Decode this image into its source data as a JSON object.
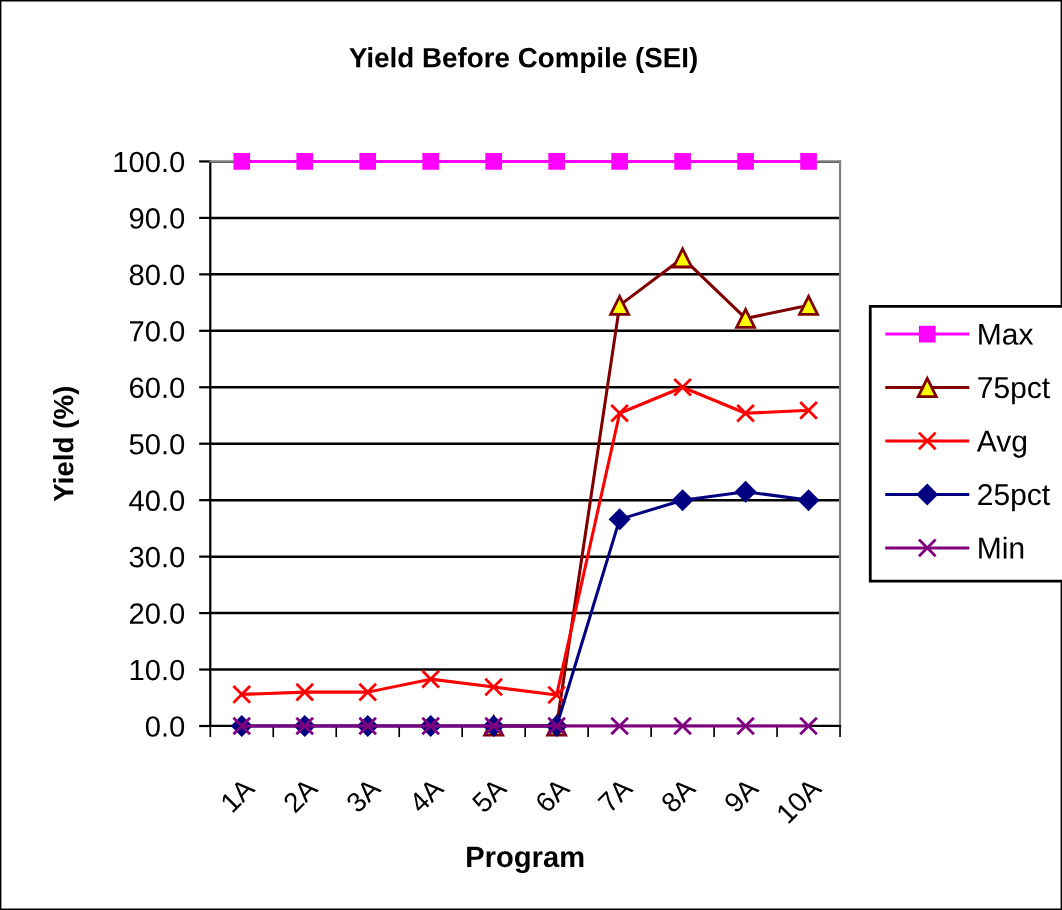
{
  "chart_data": {
    "type": "line",
    "title": "Yield Before Compile (SEI)",
    "xlabel": "Program",
    "ylabel": "Yield (%)",
    "categories": [
      "1A",
      "2A",
      "3A",
      "4A",
      "5A",
      "6A",
      "7A",
      "8A",
      "9A",
      "10A"
    ],
    "series": [
      {
        "name": "Max",
        "color": "#ff00ff",
        "marker": "square",
        "values": [
          100,
          100,
          100,
          100,
          100,
          100,
          100,
          100,
          100,
          100
        ]
      },
      {
        "name": "75pct",
        "color": "#800000",
        "marker": "triangle",
        "values": [
          null,
          null,
          null,
          null,
          0,
          0,
          74.5,
          82.9,
          72.2,
          74.5
        ]
      },
      {
        "name": "Avg",
        "color": "#ff0000",
        "marker": "cross",
        "values": [
          5.6,
          6.0,
          6.0,
          8.3,
          6.9,
          5.5,
          55.4,
          60.0,
          55.4,
          55.9
        ]
      },
      {
        "name": "25pct",
        "color": "#000080",
        "marker": "diamond",
        "values": [
          0,
          0,
          0,
          0,
          0,
          0,
          36.6,
          40.0,
          41.5,
          40.0
        ]
      },
      {
        "name": "Min",
        "color": "#800080",
        "marker": "cross",
        "values": [
          0,
          0,
          0,
          0,
          0,
          0,
          0,
          0,
          0,
          0
        ]
      }
    ],
    "ylim": [
      0,
      100
    ],
    "yticks": [
      {
        "value": 0,
        "label": "0.0"
      },
      {
        "value": 10,
        "label": "10.0"
      },
      {
        "value": 20,
        "label": "20.0"
      },
      {
        "value": 30,
        "label": "30.0"
      },
      {
        "value": 40,
        "label": "40.0"
      },
      {
        "value": 50,
        "label": "50.0"
      },
      {
        "value": 60,
        "label": "60.0"
      },
      {
        "value": 70,
        "label": "70.0"
      },
      {
        "value": 80,
        "label": "80.0"
      },
      {
        "value": 90,
        "label": "90.0"
      },
      {
        "value": 100,
        "label": "100.0"
      }
    ],
    "grid": "y",
    "legend": "right",
    "line_style": "solid"
  }
}
